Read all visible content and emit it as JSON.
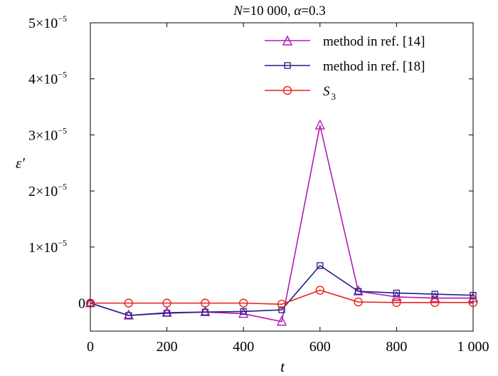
{
  "chart_data": {
    "type": "line",
    "title": {
      "N_sym": "N",
      "N_val": "=10 000, ",
      "alpha_sym": "α",
      "alpha_val": "=0.3"
    },
    "xlabel": "t",
    "ylabel": "ε′",
    "xlim": [
      0,
      1000
    ],
    "ylim": [
      -0.5,
      5
    ],
    "y_exponent": "−5",
    "xticks": [
      {
        "value": 0,
        "label": "0"
      },
      {
        "value": 200,
        "label": "200"
      },
      {
        "value": 400,
        "label": "400"
      },
      {
        "value": 600,
        "label": "600"
      },
      {
        "value": 800,
        "label": "800"
      },
      {
        "value": 1000,
        "label": "1 000"
      }
    ],
    "yticks": [
      {
        "value": 0,
        "mant": "0"
      },
      {
        "value": 1,
        "mant": "1×10"
      },
      {
        "value": 2,
        "mant": "2×10"
      },
      {
        "value": 3,
        "mant": "3×10"
      },
      {
        "value": 4,
        "mant": "4×10"
      },
      {
        "value": 5,
        "mant": "5×10"
      }
    ],
    "y_unit": "×10^-5",
    "grid": false,
    "legend_position": "top-right",
    "x": [
      0,
      100,
      200,
      300,
      400,
      500,
      600,
      700,
      800,
      900,
      1000
    ],
    "series": [
      {
        "name": "method in ref.  [14]",
        "color": "#b31bb3",
        "marker": "triangle",
        "values": [
          0.0,
          -0.22,
          -0.17,
          -0.16,
          -0.19,
          -0.33,
          3.17,
          0.21,
          0.11,
          0.09,
          0.09
        ]
      },
      {
        "name": "method in ref.  [18]",
        "color": "#1f1f86",
        "marker": "square",
        "values": [
          0.0,
          -0.22,
          -0.18,
          -0.16,
          -0.15,
          -0.12,
          0.67,
          0.21,
          0.18,
          0.16,
          0.14
        ]
      },
      {
        "name_base": "S",
        "name_sub": "3",
        "color": "#e8231c",
        "marker": "circle",
        "values": [
          0.0,
          0.0,
          0.0,
          0.0,
          0.0,
          -0.02,
          0.23,
          0.02,
          0.01,
          0.01,
          0.01
        ]
      }
    ]
  }
}
